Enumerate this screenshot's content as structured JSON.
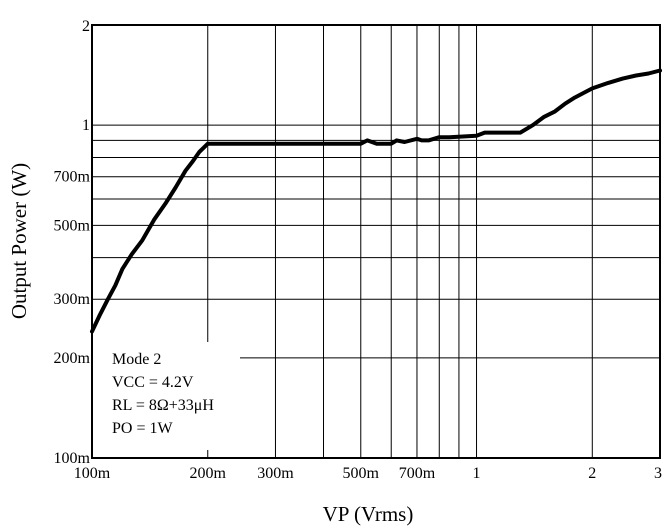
{
  "chart_data": {
    "type": "line",
    "title": "",
    "xlabel": "VP (Vrms)",
    "ylabel": "Output Power (W)",
    "xscale": "log",
    "yscale": "log",
    "xlim": [
      0.1,
      3
    ],
    "ylim": [
      0.1,
      2
    ],
    "grid": true,
    "x_ticks": [
      {
        "value": 0.1,
        "label": "100m"
      },
      {
        "value": 0.2,
        "label": "200m"
      },
      {
        "value": 0.3,
        "label": "300m"
      },
      {
        "value": 0.5,
        "label": "500m"
      },
      {
        "value": 0.7,
        "label": "700m"
      },
      {
        "value": 1,
        "label": "1"
      },
      {
        "value": 2,
        "label": "2"
      },
      {
        "value": 3,
        "label": "3"
      }
    ],
    "y_ticks": [
      {
        "value": 0.1,
        "label": "100m"
      },
      {
        "value": 0.2,
        "label": "200m"
      },
      {
        "value": 0.3,
        "label": "300m"
      },
      {
        "value": 0.5,
        "label": "500m"
      },
      {
        "value": 0.7,
        "label": "700m"
      },
      {
        "value": 1,
        "label": "1"
      },
      {
        "value": 2,
        "label": "2"
      }
    ],
    "x_grid": [
      0.1,
      0.2,
      0.3,
      0.4,
      0.5,
      0.6,
      0.7,
      0.8,
      0.9,
      1,
      2,
      3
    ],
    "y_grid": [
      0.1,
      0.2,
      0.3,
      0.4,
      0.5,
      0.6,
      0.7,
      0.8,
      0.9,
      1,
      2
    ],
    "annotation_lines": [
      "Mode 2",
      "VCC = 4.2V",
      "RL = 8Ω+33μH",
      "PO = 1W"
    ],
    "series": [
      {
        "x": [
          0.1,
          0.105,
          0.11,
          0.115,
          0.12,
          0.127,
          0.135,
          0.145,
          0.155,
          0.165,
          0.175,
          0.183,
          0.19,
          0.2,
          0.3,
          0.4,
          0.5,
          0.52,
          0.55,
          0.6,
          0.62,
          0.65,
          0.7,
          0.72,
          0.75,
          0.8,
          0.85,
          1.0,
          1.05,
          1.3,
          1.4,
          1.5,
          1.6,
          1.7,
          1.8,
          1.9,
          2.0,
          2.2,
          2.4,
          2.6,
          2.8,
          3.0
        ],
        "y": [
          0.24,
          0.27,
          0.3,
          0.33,
          0.37,
          0.41,
          0.45,
          0.52,
          0.58,
          0.65,
          0.73,
          0.78,
          0.83,
          0.88,
          0.88,
          0.88,
          0.88,
          0.9,
          0.88,
          0.88,
          0.9,
          0.89,
          0.91,
          0.9,
          0.9,
          0.92,
          0.92,
          0.93,
          0.95,
          0.95,
          1.0,
          1.06,
          1.1,
          1.16,
          1.21,
          1.25,
          1.29,
          1.34,
          1.38,
          1.41,
          1.43,
          1.46
        ]
      }
    ]
  }
}
